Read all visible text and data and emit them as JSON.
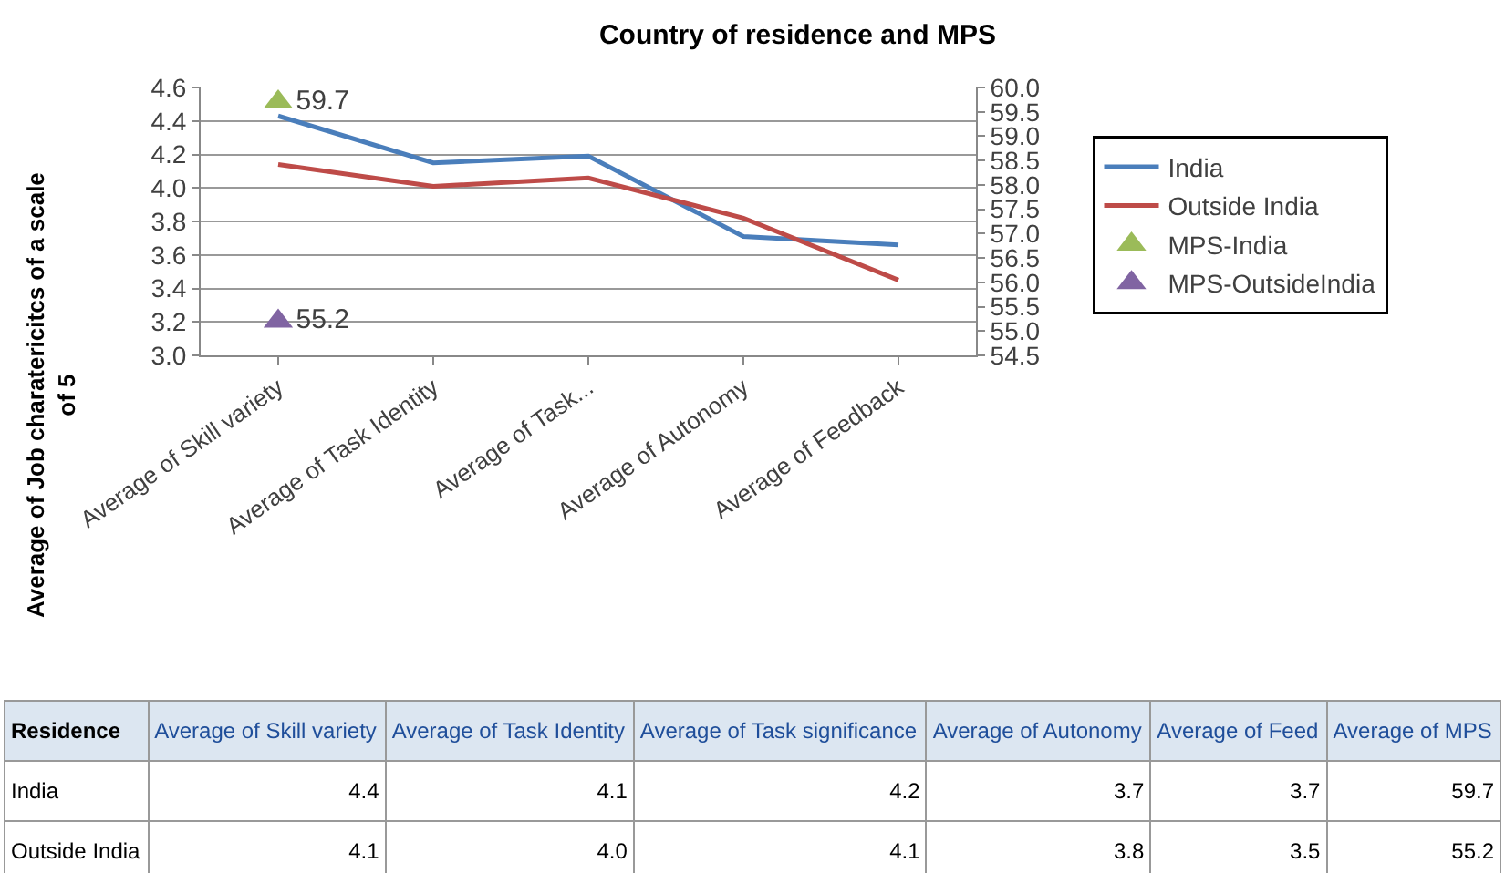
{
  "chart_data": {
    "type": "line",
    "title": "Country of residence and MPS",
    "ylabel": "Average of Job charatericitcs of a scale of 5",
    "categories": [
      "Average of Skill variety",
      "Average of Task Identity",
      "Average of Task...",
      "Average of Autonomy",
      "Average of Feedback"
    ],
    "series": [
      {
        "name": "India",
        "color": "#4a7ebb",
        "values": [
          4.43,
          4.15,
          4.19,
          3.71,
          3.66
        ]
      },
      {
        "name": "Outside India",
        "color": "#be4b48",
        "values": [
          4.14,
          4.01,
          4.06,
          3.82,
          3.45
        ]
      },
      {
        "name": "MPS-India",
        "type": "scatter",
        "marker": "triangle",
        "axis": "y2",
        "color": "#9bbb59",
        "values": [
          59.7,
          null,
          null,
          null,
          null
        ],
        "value_labels": [
          "59.7",
          null,
          null,
          null,
          null
        ]
      },
      {
        "name": "MPS-OutsideIndia",
        "type": "scatter",
        "marker": "triangle",
        "axis": "y2",
        "color": "#8064a2",
        "values": [
          55.2,
          null,
          null,
          null,
          null
        ],
        "value_labels": [
          "55.2",
          null,
          null,
          null,
          null
        ]
      }
    ],
    "ylim": [
      3.0,
      4.6
    ],
    "yticks": [
      {
        "value": 3,
        "label": "3.0"
      },
      3.2,
      3.4,
      3.6,
      3.8,
      {
        "value": 4,
        "label": "4.0"
      },
      4.2,
      4.4,
      4.6
    ],
    "y2lim": [
      54.5,
      60.0
    ],
    "y2ticks": [
      54.5,
      {
        "value": 55,
        "label": "55.0"
      },
      55.5,
      {
        "value": 56,
        "label": "56.0"
      },
      56.5,
      {
        "value": 57,
        "label": "57.0"
      },
      57.5,
      {
        "value": 58,
        "label": "58.0"
      },
      58.5,
      {
        "value": 59,
        "label": "59.0"
      },
      59.5,
      {
        "value": 60,
        "label": "60.0"
      }
    ],
    "grid": "y",
    "legend": "right",
    "marker": "none",
    "line_style": "solid",
    "annotations": [
      "Residence",
      "Average of Skill variety",
      "Average of Task Identity",
      "Average of Task significance",
      "Average of Autonomy",
      "Average of Feed",
      "Average of MPS",
      "India",
      "4.4",
      "4.1",
      "4.2",
      "3.7",
      "3.7",
      "59.7",
      "Outside India",
      "4.1",
      "4.0",
      "4.1",
      "3.8",
      "3.5",
      "55.2"
    ]
  }
}
